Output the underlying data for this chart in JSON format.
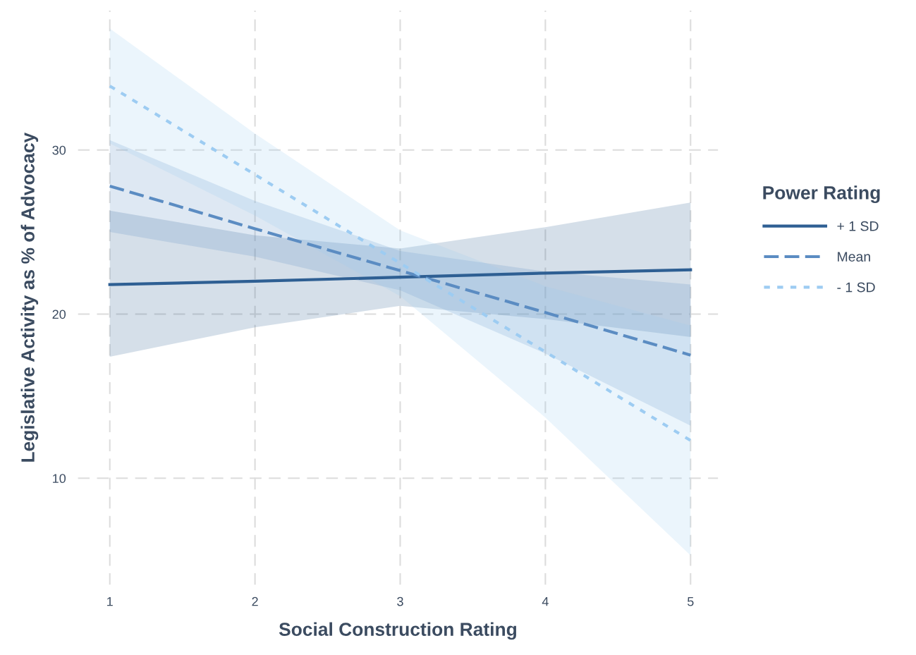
{
  "chart_data": {
    "type": "line",
    "xlabel": "Social Construction Rating",
    "ylabel": "Legislative Activity as % of Advocacy",
    "legend_title": "Power Rating",
    "legend": "right",
    "grid": true,
    "x": [
      1,
      2,
      3,
      4,
      5
    ],
    "xlim": [
      0.78,
      5.19
    ],
    "xticks": [
      1,
      2,
      3,
      4,
      5
    ],
    "ylim": [
      3.5,
      38.5
    ],
    "yticks": [
      10,
      20,
      30
    ],
    "series": [
      {
        "name": "+ 1 SD",
        "color": "#2e5f93",
        "line_style": "solid",
        "values": [
          21.8,
          22.0,
          22.25,
          22.5,
          22.7
        ],
        "lower": [
          17.4,
          19.2,
          20.5,
          19.7,
          18.6
        ],
        "upper": [
          26.3,
          24.8,
          24.0,
          25.3,
          26.8
        ]
      },
      {
        "name": "Mean",
        "color": "#5b8cc2",
        "line_style": "dashed",
        "values": [
          27.8,
          25.2,
          22.65,
          20.1,
          17.5
        ],
        "lower": [
          25.0,
          23.5,
          21.45,
          17.6,
          13.2
        ],
        "upper": [
          30.6,
          26.9,
          23.85,
          22.6,
          21.8
        ]
      },
      {
        "name": "- 1 SD",
        "color": "#9dccf2",
        "line_style": "dotted",
        "values": [
          33.9,
          28.5,
          23.1,
          17.7,
          12.3
        ],
        "lower": [
          30.4,
          26.0,
          21.1,
          13.7,
          5.3
        ],
        "upper": [
          37.4,
          31.0,
          25.1,
          21.7,
          19.3
        ]
      }
    ]
  }
}
